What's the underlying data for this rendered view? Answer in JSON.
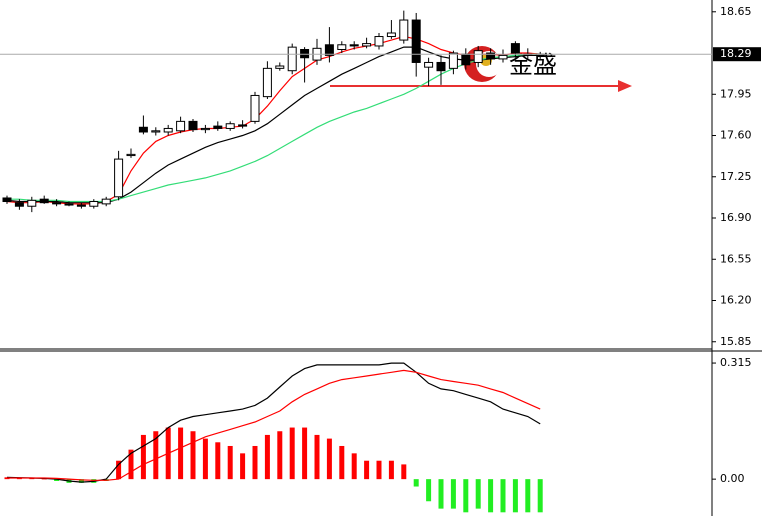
{
  "chart_data": [
    {
      "type": "candlestick",
      "open": [
        17.07,
        17.03,
        17.0,
        17.06,
        17.03,
        17.02,
        17.01,
        17.0,
        17.02,
        17.08,
        17.43,
        17.67,
        17.63,
        17.63,
        17.64,
        17.72,
        17.65,
        17.68,
        17.66,
        17.69,
        17.72,
        17.93,
        18.17,
        18.15,
        18.33,
        18.24,
        18.37,
        18.33,
        18.37,
        18.36,
        18.36,
        18.44,
        18.41,
        18.58,
        18.18,
        18.22,
        18.17,
        18.29,
        18.22,
        18.3,
        18.25,
        18.38,
        18.29,
        18.28
      ],
      "high": [
        17.09,
        17.06,
        17.08,
        17.09,
        17.06,
        17.04,
        17.03,
        17.06,
        17.08,
        17.47,
        17.49,
        17.77,
        17.67,
        17.69,
        17.76,
        17.74,
        17.69,
        17.72,
        17.72,
        17.73,
        17.97,
        18.23,
        18.22,
        18.38,
        18.35,
        18.42,
        18.52,
        18.4,
        18.4,
        18.43,
        18.47,
        18.58,
        18.66,
        18.64,
        18.26,
        18.28,
        18.32,
        18.34,
        18.36,
        18.34,
        18.33,
        18.4,
        18.34,
        18.31
      ],
      "low": [
        17.02,
        16.97,
        16.95,
        17.02,
        17.0,
        17.0,
        16.98,
        16.98,
        17.0,
        17.05,
        17.41,
        17.61,
        17.6,
        17.6,
        17.62,
        17.63,
        17.62,
        17.64,
        17.64,
        17.66,
        17.7,
        17.91,
        18.15,
        18.12,
        18.05,
        18.2,
        18.22,
        18.3,
        18.33,
        18.34,
        18.33,
        18.42,
        18.38,
        18.1,
        18.02,
        18.03,
        18.12,
        18.16,
        18.18,
        18.2,
        18.22,
        18.26,
        18.25,
        18.25
      ],
      "close": [
        17.04,
        17.0,
        17.05,
        17.03,
        17.02,
        17.01,
        17.0,
        17.04,
        17.06,
        17.4,
        17.44,
        17.63,
        17.64,
        17.66,
        17.72,
        17.65,
        17.66,
        17.66,
        17.7,
        17.68,
        17.94,
        18.17,
        18.19,
        18.35,
        18.26,
        18.34,
        18.28,
        18.37,
        18.36,
        18.38,
        18.44,
        18.47,
        18.58,
        18.22,
        18.22,
        18.15,
        18.3,
        18.2,
        18.32,
        18.25,
        18.28,
        18.3,
        18.28,
        18.29
      ],
      "up_color": "#ffffff",
      "down_color": "#000000",
      "series": [
        {
          "color": "#ff0000",
          "values": [
            17.04,
            17.03,
            17.03,
            17.04,
            17.03,
            17.02,
            17.02,
            17.02,
            17.04,
            17.1,
            17.3,
            17.45,
            17.55,
            17.6,
            17.63,
            17.65,
            17.66,
            17.66,
            17.67,
            17.68,
            17.74,
            17.85,
            17.98,
            18.1,
            18.17,
            18.24,
            18.27,
            18.31,
            18.34,
            18.36,
            18.38,
            18.41,
            18.44,
            18.42,
            18.38,
            18.33,
            18.3,
            18.28,
            18.29,
            18.29,
            18.28,
            18.3,
            18.3,
            18.29
          ]
        },
        {
          "color": "#000000",
          "values": [
            17.05,
            17.04,
            17.04,
            17.04,
            17.04,
            17.03,
            17.03,
            17.03,
            17.03,
            17.06,
            17.12,
            17.2,
            17.28,
            17.35,
            17.4,
            17.45,
            17.5,
            17.54,
            17.57,
            17.6,
            17.64,
            17.7,
            17.78,
            17.86,
            17.94,
            18.0,
            18.06,
            18.12,
            18.17,
            18.22,
            18.27,
            18.31,
            18.35,
            18.35,
            18.31,
            18.27,
            18.25,
            18.24,
            18.24,
            18.25,
            18.26,
            18.27,
            18.28,
            18.28
          ]
        },
        {
          "color": "#33dd77",
          "values": [
            17.06,
            17.06,
            17.05,
            17.05,
            17.05,
            17.04,
            17.04,
            17.04,
            17.04,
            17.06,
            17.09,
            17.12,
            17.15,
            17.18,
            17.2,
            17.22,
            17.24,
            17.27,
            17.3,
            17.34,
            17.38,
            17.43,
            17.49,
            17.55,
            17.61,
            17.67,
            17.72,
            17.76,
            17.8,
            17.83,
            17.87,
            17.91,
            17.95,
            18.0,
            18.06,
            18.12,
            18.17,
            18.21,
            18.24,
            18.26,
            18.27,
            18.28,
            18.29,
            18.29
          ]
        }
      ],
      "ylim": [
        15.78,
        18.75
      ],
      "yticks": [
        18.65,
        {
          "value": 17.95,
          "label": "17.95"
        },
        {
          "value": 17.6,
          "label": "17.60"
        },
        17.25,
        {
          "value": 16.9,
          "label": "16.90"
        },
        16.55,
        {
          "value": 16.2,
          "label": "16.20"
        },
        15.85
      ],
      "current_price": 18.29,
      "annotation": "金盛"
    },
    {
      "type": "macd",
      "histogram": [
        0.005,
        0.004,
        0.003,
        0.002,
        -0.005,
        -0.01,
        -0.01,
        -0.01,
        -0.005,
        0.05,
        0.08,
        0.12,
        0.13,
        0.14,
        0.14,
        0.13,
        0.11,
        0.1,
        0.09,
        0.07,
        0.09,
        0.12,
        0.13,
        0.14,
        0.14,
        0.12,
        0.11,
        0.09,
        0.07,
        0.05,
        0.05,
        0.05,
        0.04,
        -0.02,
        -0.06,
        -0.08,
        -0.08,
        -0.09,
        -0.08,
        -0.09,
        -0.09,
        -0.09,
        -0.09,
        -0.09
      ],
      "up_color": "#ff0000",
      "down_color": "#22ee22",
      "series": [
        {
          "color": "#000000",
          "values": [
            0.005,
            0.004,
            0.003,
            0.002,
            0,
            -0.005,
            -0.008,
            -0.006,
            0,
            0.04,
            0.07,
            0.09,
            0.11,
            0.14,
            0.16,
            0.17,
            0.175,
            0.18,
            0.185,
            0.19,
            0.2,
            0.22,
            0.25,
            0.28,
            0.3,
            0.31,
            0.31,
            0.31,
            0.31,
            0.31,
            0.31,
            0.315,
            0.315,
            0.29,
            0.26,
            0.245,
            0.24,
            0.23,
            0.22,
            0.21,
            0.19,
            0.18,
            0.17,
            0.15
          ]
        },
        {
          "color": "#ff0000",
          "values": [
            0.003,
            0.003,
            0.003,
            0.003,
            0.002,
            0,
            -0.002,
            -0.003,
            -0.003,
            0,
            0.02,
            0.04,
            0.055,
            0.07,
            0.085,
            0.1,
            0.115,
            0.125,
            0.135,
            0.145,
            0.155,
            0.17,
            0.185,
            0.21,
            0.23,
            0.245,
            0.26,
            0.27,
            0.275,
            0.28,
            0.285,
            0.29,
            0.295,
            0.29,
            0.28,
            0.27,
            0.265,
            0.26,
            0.255,
            0.245,
            0.235,
            0.22,
            0.205,
            0.19
          ]
        }
      ],
      "ylim": [
        -0.1,
        0.345
      ],
      "yticks": [
        0.315,
        {
          "value": 0,
          "label": "0.00"
        }
      ]
    }
  ]
}
